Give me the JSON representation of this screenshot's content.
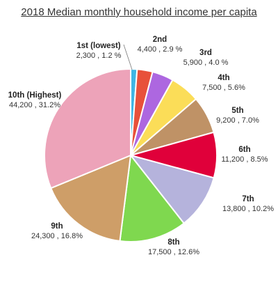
{
  "chart_data": {
    "type": "pie",
    "title": "2018 Median monthly household income per capita",
    "slices": [
      {
        "label": "1st (lowest)",
        "value": 2300,
        "value_text": "2,300",
        "percent": 1.2,
        "percent_text": "1.2 %",
        "color": "#3fb6e3"
      },
      {
        "label": "2nd",
        "value": 4400,
        "value_text": "4,400",
        "percent": 2.9,
        "percent_text": "2.9 %",
        "color": "#e8513a"
      },
      {
        "label": "3rd",
        "value": 5900,
        "value_text": "5,900",
        "percent": 4.0,
        "percent_text": "4.0 %",
        "color": "#ad67e0"
      },
      {
        "label": "4th",
        "value": 7500,
        "value_text": "7,500",
        "percent": 5.6,
        "percent_text": "5.6%",
        "color": "#fbdd58"
      },
      {
        "label": "5th",
        "value": 9200,
        "value_text": "9,200",
        "percent": 7.0,
        "percent_text": "7.0%",
        "color": "#bf9266"
      },
      {
        "label": "6th",
        "value": 11200,
        "value_text": "11,200",
        "percent": 8.5,
        "percent_text": "8.5%",
        "color": "#e0003a"
      },
      {
        "label": "7th",
        "value": 13800,
        "value_text": "13,800",
        "percent": 10.2,
        "percent_text": "10.2%",
        "color": "#b5b3dc"
      },
      {
        "label": "8th",
        "value": 17500,
        "value_text": "17,500",
        "percent": 12.6,
        "percent_text": "12.6%",
        "color": "#7fd84f"
      },
      {
        "label": "9th",
        "value": 24300,
        "value_text": "24,300",
        "percent": 16.8,
        "percent_text": "16.8%",
        "color": "#ce9e68"
      },
      {
        "label": "10th (Highest)",
        "value": 44200,
        "value_text": "44,200",
        "percent": 31.2,
        "percent_text": "31.2%",
        "color": "#eda3b9"
      }
    ]
  }
}
